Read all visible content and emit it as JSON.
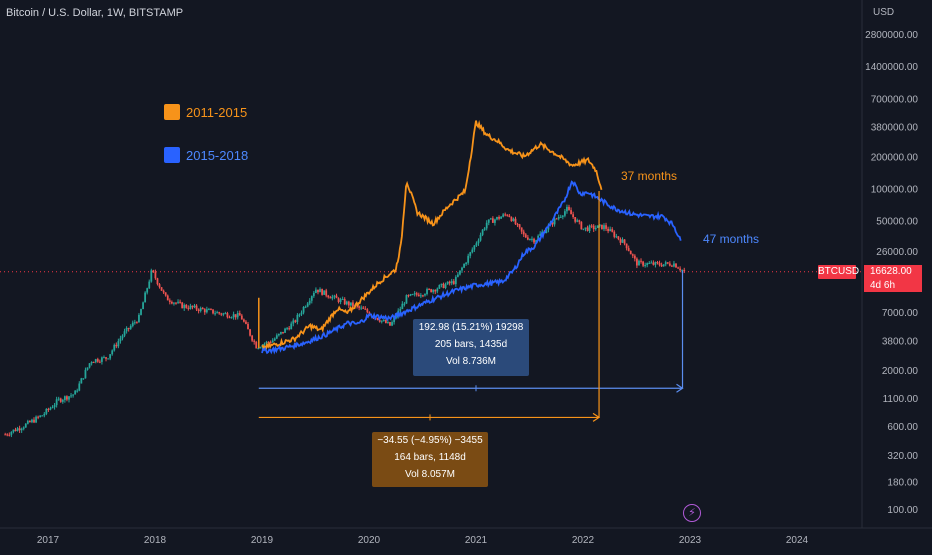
{
  "header": {
    "symbol_title": "Bitcoin / U.S. Dollar, 1W, BITSTAMP",
    "currency": "USD"
  },
  "price_tag": {
    "ticker": "BTCUSD",
    "last": "16628.00",
    "countdown": "4d 6h"
  },
  "legend": [
    {
      "label": "2011-2015",
      "color": "#f7931a"
    },
    {
      "label": "2015-2018",
      "color": "#2962ff"
    }
  ],
  "annotations": {
    "orange": "37 months",
    "blue": "47 months"
  },
  "measure_blue": {
    "line1": "192.98 (15.21%) 19298",
    "line2": "205 bars, 1435d",
    "line3": "Vol 8.736M"
  },
  "measure_orange": {
    "line1": "−34.55 (−4.95%) −3455",
    "line2": "164 bars, 1148d",
    "line3": "Vol 8.057M"
  },
  "colors": {
    "bg": "#131722",
    "up": "#26a69a",
    "down": "#ef5350",
    "orange": "#f7931a",
    "blue": "#2962ff",
    "text": "#d1d4dc"
  },
  "chart_data": {
    "type": "line",
    "title": "Bitcoin / U.S. Dollar, 1W, BITSTAMP",
    "y_scale": "log",
    "y_ticks": [
      "2800000.00",
      "1400000.00",
      "700000.00",
      "380000.00",
      "200000.00",
      "100000.00",
      "50000.00",
      "26000.00",
      "7000.00",
      "3800.00",
      "2000.00",
      "1100.00",
      "600.00",
      "320.00",
      "180.00",
      "100.00"
    ],
    "y_tick_values": [
      2800000,
      1400000,
      700000,
      380000,
      200000,
      100000,
      50000,
      26000,
      7000,
      3800,
      2000,
      1100,
      600,
      320,
      180,
      100
    ],
    "x_ticks": [
      "2017",
      "2018",
      "2019",
      "2020",
      "2021",
      "2022",
      "2023",
      "2024"
    ],
    "x_tick_years": [
      2017,
      2018,
      2019,
      2020,
      2021,
      2022,
      2023,
      2024
    ],
    "x_range": [
      2016.6,
      2024.6
    ],
    "y_range": [
      85,
      4000000
    ],
    "series": [
      {
        "kind": "price",
        "points": [
          [
            2016.6,
            500
          ],
          [
            2016.8,
            620
          ],
          [
            2016.95,
            760
          ],
          [
            2017.1,
            1050
          ],
          [
            2017.25,
            1200
          ],
          [
            2017.4,
            2450
          ],
          [
            2017.55,
            2600
          ],
          [
            2017.7,
            4300
          ],
          [
            2017.85,
            6200
          ],
          [
            2017.97,
            17000
          ],
          [
            2018.1,
            9500
          ],
          [
            2018.25,
            8000
          ],
          [
            2018.4,
            7500
          ],
          [
            2018.6,
            6800
          ],
          [
            2018.8,
            6400
          ],
          [
            2018.95,
            3300
          ],
          [
            2019.1,
            3800
          ],
          [
            2019.3,
            5600
          ],
          [
            2019.5,
            11500
          ],
          [
            2019.7,
            9200
          ],
          [
            2019.95,
            7300
          ],
          [
            2020.2,
            5200
          ],
          [
            2020.35,
            9500
          ],
          [
            2020.6,
            11400
          ],
          [
            2020.8,
            13500
          ],
          [
            2021.0,
            31000
          ],
          [
            2021.1,
            48000
          ],
          [
            2021.3,
            58000
          ],
          [
            2021.45,
            36000
          ],
          [
            2021.55,
            33000
          ],
          [
            2021.7,
            47000
          ],
          [
            2021.85,
            64000
          ],
          [
            2022.0,
            42000
          ],
          [
            2022.2,
            44000
          ],
          [
            2022.4,
            30000
          ],
          [
            2022.5,
            20000
          ],
          [
            2022.7,
            19500
          ],
          [
            2022.85,
            19800
          ],
          [
            2022.95,
            16600
          ]
        ]
      },
      {
        "name": "2011-2015",
        "points": [
          [
            2019.0,
            3200
          ],
          [
            2019.3,
            3900
          ],
          [
            2019.45,
            5200
          ],
          [
            2019.55,
            4700
          ],
          [
            2019.7,
            7500
          ],
          [
            2019.8,
            6800
          ],
          [
            2019.95,
            9600
          ],
          [
            2020.1,
            13500
          ],
          [
            2020.25,
            17500
          ],
          [
            2020.3,
            30000
          ],
          [
            2020.35,
            120000
          ],
          [
            2020.45,
            60000
          ],
          [
            2020.6,
            47000
          ],
          [
            2020.75,
            70000
          ],
          [
            2020.9,
            95000
          ],
          [
            2021.0,
            420000
          ],
          [
            2021.1,
            320000
          ],
          [
            2021.2,
            280000
          ],
          [
            2021.3,
            230000
          ],
          [
            2021.45,
            200000
          ],
          [
            2021.6,
            260000
          ],
          [
            2021.75,
            210000
          ],
          [
            2021.9,
            165000
          ],
          [
            2022.05,
            185000
          ],
          [
            2022.12,
            150000
          ],
          [
            2022.18,
            95000
          ]
        ]
      },
      {
        "name": "2015-2018",
        "points": [
          [
            2019.0,
            3000
          ],
          [
            2019.2,
            3200
          ],
          [
            2019.4,
            3600
          ],
          [
            2019.6,
            4300
          ],
          [
            2019.8,
            5500
          ],
          [
            2019.9,
            5400
          ],
          [
            2020.0,
            6500
          ],
          [
            2020.2,
            6100
          ],
          [
            2020.4,
            7500
          ],
          [
            2020.6,
            9200
          ],
          [
            2020.8,
            11000
          ],
          [
            2021.0,
            12500
          ],
          [
            2021.15,
            13000
          ],
          [
            2021.25,
            13500
          ],
          [
            2021.35,
            17000
          ],
          [
            2021.45,
            25000
          ],
          [
            2021.55,
            29000
          ],
          [
            2021.7,
            48000
          ],
          [
            2021.82,
            75000
          ],
          [
            2021.9,
            120000
          ],
          [
            2021.97,
            90000
          ],
          [
            2022.05,
            92000
          ],
          [
            2022.15,
            80000
          ],
          [
            2022.3,
            65000
          ],
          [
            2022.45,
            58000
          ],
          [
            2022.6,
            55000
          ],
          [
            2022.75,
            55000
          ],
          [
            2022.85,
            45000
          ],
          [
            2022.92,
            31000
          ]
        ]
      }
    ]
  }
}
